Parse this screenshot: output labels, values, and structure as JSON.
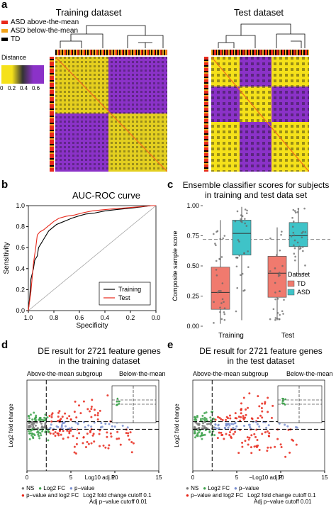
{
  "panels": {
    "a": {
      "letter": "a",
      "training_title": "Training dataset",
      "test_title": "Test dataset",
      "legend": [
        {
          "label": "ASD above-the-mean",
          "color": "#e8291c"
        },
        {
          "label": "ASD below-the-mean",
          "color": "#f2a31a"
        },
        {
          "label": "TD",
          "color": "#000000"
        }
      ],
      "distance_label": "Distance",
      "distance_ticks": [
        "0",
        "0.2",
        "0.4",
        "0.6"
      ],
      "colors": {
        "yellow": "#f5e11a",
        "purple": "#8b32c8",
        "black": "#111111"
      }
    },
    "b": {
      "letter": "b",
      "title": "AUC-ROC curve",
      "xlabel": "Specificity",
      "ylabel": "Sensitivity",
      "legend": [
        {
          "label": "Training",
          "color": "#000000"
        },
        {
          "label": "Test",
          "color": "#e8291c"
        }
      ]
    },
    "c": {
      "letter": "c",
      "title_line1": "Ensemble classifier scores for subjects",
      "title_line2": "in training and test data set",
      "ylabel": "Composite sample score",
      "legend_title": "Dataset",
      "legend": [
        {
          "label": "TD",
          "color": "#f07a6e"
        },
        {
          "label": "ASD",
          "color": "#3fc3c8"
        }
      ]
    },
    "d": {
      "letter": "d",
      "title_line1": "DE result for 2721 feature genes",
      "title_line2": "in the training dataset",
      "subgroup_left": "Above-the-mean subgroup",
      "subgroup_right": "Below-the-mean",
      "ylabel": "Log2 fold change",
      "xlabel": "Log10 adj.P",
      "xticks": [
        "0",
        "5",
        "10",
        "15"
      ]
    },
    "e": {
      "letter": "e",
      "title_line1": "DE result for 2721 feature genes",
      "title_line2": "in the test dataset",
      "subgroup_left": "Above-the-mean subgroup",
      "subgroup_right": "Below-the-mean",
      "ylabel": "Log2 fold change",
      "xlabel": "−Log10 adj.P",
      "xticks": [
        "0",
        "5",
        "10",
        "15"
      ]
    },
    "volcano_legend": {
      "items": [
        {
          "label": "NS",
          "color": "#7a7a7a"
        },
        {
          "label": "Log2 FC",
          "color": "#3fa34d"
        },
        {
          "label": "p−value",
          "color": "#7a8fd0"
        },
        {
          "label": "p−value and log2 FC",
          "color": "#e8291c"
        }
      ],
      "cutoff_fc": "Log2 fold change cutoff 0.1",
      "cutoff_p": "Adj p−value cutoff 0.01"
    }
  },
  "chart_data": [
    {
      "type": "line",
      "title": "AUC-ROC curve",
      "xlabel": "Specificity",
      "ylabel": "Sensitivity",
      "xlim": [
        1.0,
        0.0
      ],
      "ylim": [
        0.0,
        1.0
      ],
      "x_ticks": [
        "1.0",
        "0.8",
        "0.6",
        "0.4",
        "0.2",
        "0.0"
      ],
      "y_ticks": [
        "0.0",
        "0.2",
        "0.4",
        "0.6",
        "0.8",
        "1.0"
      ],
      "series": [
        {
          "name": "Training",
          "x": [
            1.0,
            0.99,
            0.98,
            0.96,
            0.95,
            0.93,
            0.92,
            0.9,
            0.88,
            0.86,
            0.84,
            0.81,
            0.78,
            0.74,
            0.7,
            0.66,
            0.61,
            0.55,
            0.48,
            0.4,
            0.33,
            0.25,
            0.17,
            0.1,
            0.04,
            0.0
          ],
          "y": [
            0.0,
            0.12,
            0.3,
            0.4,
            0.48,
            0.52,
            0.6,
            0.64,
            0.68,
            0.72,
            0.76,
            0.79,
            0.82,
            0.84,
            0.86,
            0.88,
            0.9,
            0.92,
            0.93,
            0.95,
            0.96,
            0.97,
            0.98,
            0.99,
            1.0,
            1.0
          ]
        },
        {
          "name": "Test",
          "x": [
            1.0,
            0.98,
            0.96,
            0.94,
            0.93,
            0.91,
            0.88,
            0.85,
            0.83,
            0.8,
            0.76,
            0.7,
            0.64,
            0.58,
            0.5,
            0.42,
            0.33,
            0.22,
            0.12,
            0.04,
            0.0
          ],
          "y": [
            0.0,
            0.18,
            0.45,
            0.62,
            0.72,
            0.75,
            0.77,
            0.8,
            0.82,
            0.85,
            0.88,
            0.9,
            0.91,
            0.93,
            0.95,
            0.96,
            0.97,
            0.98,
            0.99,
            1.0,
            1.0
          ]
        }
      ]
    },
    {
      "type": "box",
      "title": "Ensemble classifier scores for subjects in training and test data set",
      "ylabel": "Composite sample score",
      "categories": [
        "Training",
        "Test"
      ],
      "ylim": [
        0.0,
        1.0
      ],
      "y_ticks": [
        "0.00",
        "0.25",
        "0.50",
        "0.75",
        "1.00"
      ],
      "threshold": 0.72,
      "series": [
        {
          "name": "TD",
          "boxes": [
            {
              "min": 0.02,
              "q1": 0.14,
              "median": 0.28,
              "q3": 0.49,
              "max": 0.88
            },
            {
              "min": 0.05,
              "q1": 0.24,
              "median": 0.44,
              "q3": 0.58,
              "max": 0.82
            }
          ]
        },
        {
          "name": "ASD",
          "boxes": [
            {
              "min": 0.05,
              "q1": 0.59,
              "median": 0.77,
              "q3": 0.88,
              "max": 0.99
            },
            {
              "min": 0.42,
              "q1": 0.66,
              "median": 0.75,
              "q3": 0.86,
              "max": 0.98
            }
          ]
        }
      ]
    }
  ]
}
